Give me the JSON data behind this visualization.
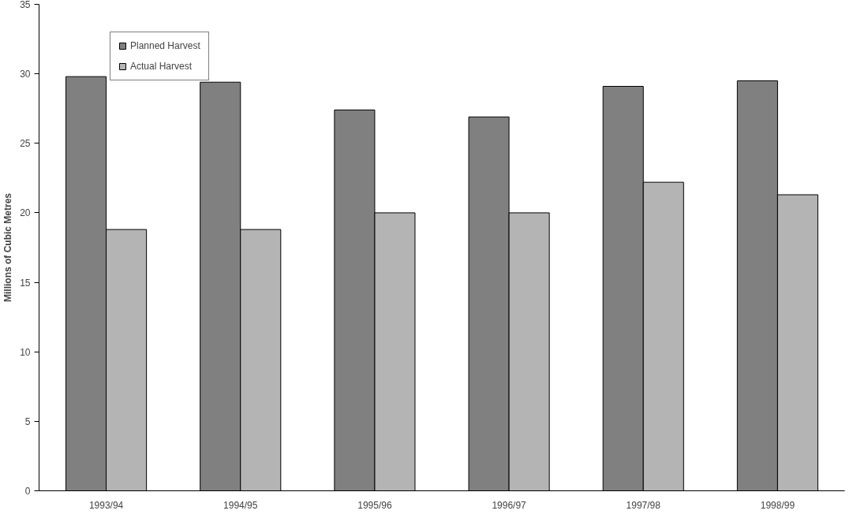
{
  "chart_data": {
    "type": "bar",
    "ylabel": "Millions of Cubic Metres",
    "categories": [
      "1993/94",
      "1994/95",
      "1995/96",
      "1996/97",
      "1997/98",
      "1998/99"
    ],
    "series": [
      {
        "name": "Planned Harvest",
        "color": "#808080",
        "values": [
          29.8,
          29.4,
          27.4,
          26.9,
          29.1,
          29.5
        ]
      },
      {
        "name": "Actual Harvest",
        "color": "#b4b4b4",
        "values": [
          18.8,
          18.8,
          20.0,
          20.0,
          22.2,
          21.3
        ]
      }
    ],
    "ylim": [
      0,
      35
    ],
    "yticks": [
      0,
      5,
      10,
      15,
      20,
      25,
      30,
      35
    ],
    "grid": false,
    "legend": "top left"
  }
}
